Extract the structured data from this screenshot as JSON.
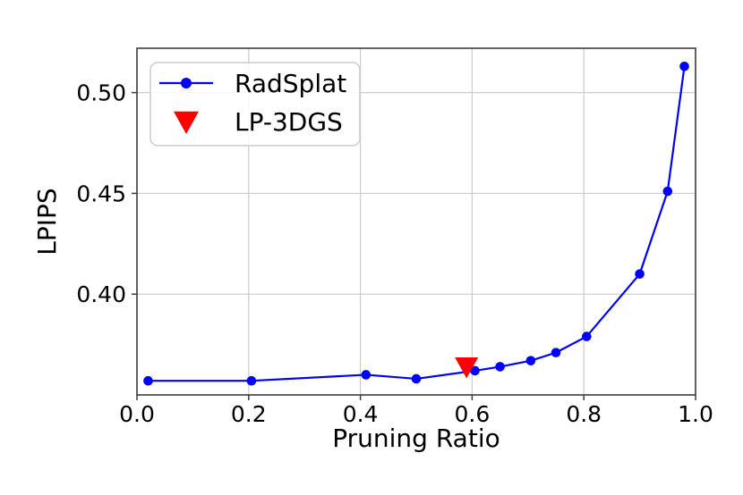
{
  "figure": {
    "background_color": "#ffffff",
    "text_color": "#000000",
    "grid_color": "#cccccc",
    "spine_color": "#3d3d3d",
    "legend_frame_color": "#cccccc"
  },
  "chart_data": {
    "type": "line",
    "title": "",
    "xlabel": "Pruning Ratio",
    "ylabel": "LPIPS",
    "xlim": [
      0.0,
      1.0
    ],
    "ylim": [
      0.35,
      0.522
    ],
    "x_ticks": [
      0.0,
      0.2,
      0.4,
      0.6,
      0.8,
      1.0
    ],
    "x_tick_labels": [
      "0.0",
      "0.2",
      "0.4",
      "0.6",
      "0.8",
      "1.0"
    ],
    "y_ticks": [
      0.4,
      0.45,
      0.5
    ],
    "y_tick_labels": [
      "0.40",
      "0.45",
      "0.50"
    ],
    "grid": true,
    "legend_position": "upper-left",
    "series": [
      {
        "name": "RadSplat",
        "color": "#0000ff",
        "marker": "circle",
        "line": true,
        "x": [
          0.02,
          0.205,
          0.41,
          0.5,
          0.605,
          0.65,
          0.705,
          0.75,
          0.805,
          0.9,
          0.95,
          0.98
        ],
        "y": [
          0.357,
          0.357,
          0.36,
          0.358,
          0.362,
          0.364,
          0.367,
          0.371,
          0.379,
          0.41,
          0.451,
          0.513
        ]
      },
      {
        "name": "LP-3DGS",
        "color": "#ff0000",
        "marker": "triangle-down",
        "line": false,
        "x": [
          0.59
        ],
        "y": [
          0.364
        ]
      }
    ]
  }
}
